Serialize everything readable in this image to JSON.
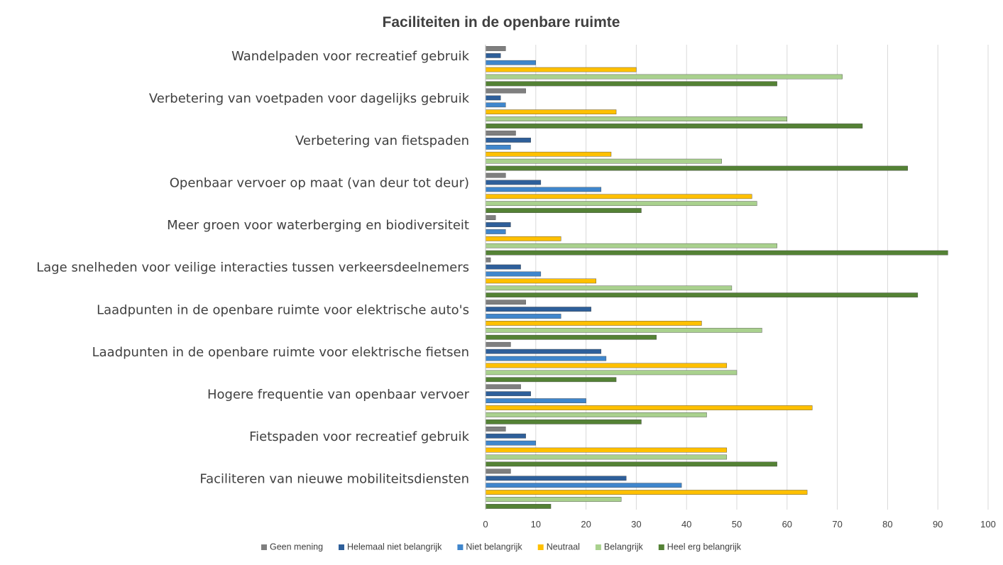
{
  "chart_data": {
    "type": "bar",
    "orientation": "horizontal",
    "title": "Faciliteiten in de openbare ruimte",
    "xlabel": "",
    "ylabel": "",
    "xlim": [
      0,
      100
    ],
    "xticks": [
      0,
      10,
      20,
      30,
      40,
      50,
      60,
      70,
      80,
      90,
      100
    ],
    "grid": true,
    "legend_position": "bottom",
    "categories": [
      "Wandelpaden voor recreatief gebruik",
      "Verbetering van voetpaden voor dagelijks gebruik",
      "Verbetering van fietspaden",
      "Openbaar vervoer op maat (van deur tot deur)",
      "Meer groen voor waterberging en biodiversiteit",
      "Lage snelheden voor veilige interacties tussen verkeersdeelnemers",
      "Laadpunten in de openbare ruimte voor elektrische auto's",
      "Laadpunten in de openbare ruimte voor elektrische fietsen",
      "Hogere frequentie van openbaar vervoer",
      "Fietspaden voor recreatief gebruik",
      "Faciliteren van nieuwe mobiliteitsdiensten"
    ],
    "series": [
      {
        "name": "Geen mening",
        "color": "#7f7f7f",
        "values": [
          4,
          8,
          6,
          4,
          2,
          1,
          8,
          5,
          7,
          4,
          5
        ]
      },
      {
        "name": "Helemaal niet belangrijk",
        "color": "#2e5f9a",
        "values": [
          3,
          3,
          9,
          11,
          5,
          7,
          21,
          23,
          9,
          8,
          28
        ]
      },
      {
        "name": "Niet belangrijk",
        "color": "#3f86cc",
        "values": [
          10,
          4,
          5,
          23,
          4,
          11,
          15,
          24,
          20,
          10,
          39
        ]
      },
      {
        "name": "Neutraal",
        "color": "#ffc000",
        "values": [
          30,
          26,
          25,
          53,
          15,
          22,
          43,
          48,
          65,
          48,
          64
        ]
      },
      {
        "name": "Belangrijk",
        "color": "#a9d18e",
        "values": [
          71,
          60,
          47,
          54,
          58,
          49,
          55,
          50,
          44,
          48,
          27
        ]
      },
      {
        "name": "Heel erg belangrijk",
        "color": "#548235",
        "values": [
          58,
          75,
          84,
          31,
          92,
          86,
          34,
          26,
          31,
          58,
          13
        ]
      }
    ]
  }
}
